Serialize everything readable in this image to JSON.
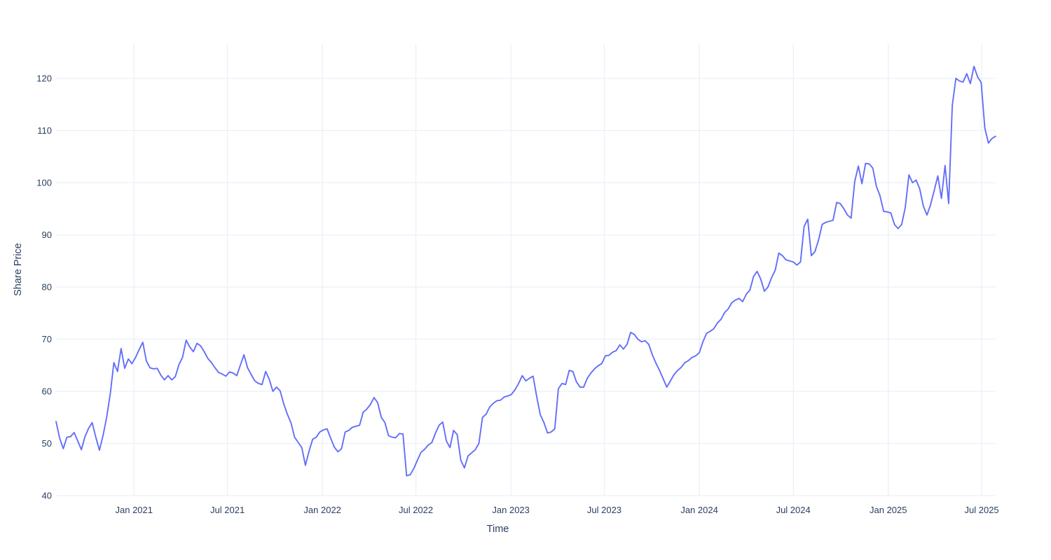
{
  "chart_data": {
    "type": "line",
    "title": "",
    "xlabel": "Time",
    "ylabel": "Share Price",
    "series": [
      {
        "name": "Share Price",
        "sampling": "weekly (approx., read from pixels)",
        "x_start_week": 0,
        "x_step_weeks": 1,
        "x_span_note": "x axis spans early Aug 2020 (week 0) to late Jul 2025 (week 260)",
        "values": [
          54.2,
          51.0,
          49.0,
          51.2,
          51.3,
          52.1,
          50.5,
          48.8,
          51.3,
          52.9,
          54.0,
          51.2,
          48.7,
          51.5,
          55.0,
          59.5,
          65.5,
          63.8,
          68.2,
          64.4,
          66.2,
          65.3,
          66.5,
          68.0,
          69.4,
          65.8,
          64.5,
          64.3,
          64.4,
          63.1,
          62.2,
          63.0,
          62.2,
          62.8,
          65.1,
          66.5,
          69.8,
          68.5,
          67.6,
          69.2,
          68.7,
          67.6,
          66.3,
          65.5,
          64.5,
          63.6,
          63.3,
          62.9,
          63.7,
          63.5,
          63.0,
          65.0,
          67.0,
          64.5,
          63.2,
          62.0,
          61.5,
          61.3,
          63.8,
          62.3,
          60.0,
          60.8,
          60.1,
          57.6,
          55.6,
          54.0,
          51.2,
          50.2,
          49.2,
          45.8,
          48.5,
          50.8,
          51.2,
          52.2,
          52.6,
          52.8,
          51.0,
          49.3,
          48.4,
          49.0,
          52.2,
          52.5,
          53.1,
          53.3,
          53.5,
          56.0,
          56.6,
          57.5,
          58.8,
          57.8,
          55.0,
          54.0,
          51.5,
          51.2,
          51.1,
          51.9,
          51.8,
          43.8,
          44.0,
          45.2,
          46.8,
          48.3,
          48.9,
          49.7,
          50.2,
          52.0,
          53.5,
          54.1,
          50.5,
          49.2,
          52.5,
          51.7,
          46.8,
          45.3,
          47.6,
          48.2,
          48.8,
          50.0,
          55.0,
          55.6,
          57.0,
          57.7,
          58.2,
          58.3,
          58.9,
          59.1,
          59.4,
          60.3,
          61.5,
          63.0,
          62.0,
          62.5,
          62.9,
          59.0,
          55.5,
          54.0,
          52.0,
          52.2,
          52.8,
          60.5,
          61.5,
          61.3,
          64.0,
          63.8,
          61.8,
          60.8,
          60.8,
          62.5,
          63.5,
          64.3,
          64.9,
          65.3,
          66.8,
          66.9,
          67.5,
          67.8,
          68.9,
          68.1,
          69.0,
          71.3,
          70.9,
          70.0,
          69.5,
          69.7,
          69.0,
          67.0,
          65.4,
          64.0,
          62.4,
          60.8,
          62.0,
          63.2,
          64.0,
          64.6,
          65.5,
          65.9,
          66.5,
          66.8,
          67.4,
          69.5,
          71.1,
          71.5,
          72.0,
          73.1,
          73.8,
          75.1,
          75.8,
          77.0,
          77.5,
          77.8,
          77.2,
          78.6,
          79.4,
          82.0,
          83.0,
          81.5,
          79.2,
          80.0,
          81.8,
          83.2,
          86.5,
          86.0,
          85.2,
          85.0,
          84.8,
          84.2,
          84.8,
          91.6,
          93.0,
          86.0,
          86.8,
          89.0,
          92.0,
          92.4,
          92.6,
          92.8,
          96.2,
          96.0,
          95.0,
          93.8,
          93.2,
          100.2,
          103.2,
          99.8,
          103.7,
          103.6,
          102.8,
          99.3,
          97.5,
          94.5,
          94.4,
          94.2,
          92.0,
          91.2,
          92.0,
          95.3,
          101.5,
          100.0,
          100.5,
          98.8,
          95.5,
          93.8,
          95.8,
          98.5,
          101.3,
          97.0,
          103.3,
          96.0,
          114.8,
          120.0,
          119.5,
          119.3,
          120.9,
          119.0,
          122.3,
          120.3,
          119.2,
          110.5,
          107.6,
          108.5,
          108.9
        ]
      }
    ],
    "x_ticks": [
      {
        "label": "Jan 2021",
        "week": 21.57
      },
      {
        "label": "Jul 2021",
        "week": 47.43
      },
      {
        "label": "Jan 2022",
        "week": 73.71
      },
      {
        "label": "Jul 2022",
        "week": 99.57
      },
      {
        "label": "Jan 2023",
        "week": 125.86
      },
      {
        "label": "Jul 2023",
        "week": 151.71
      },
      {
        "label": "Jan 2024",
        "week": 178.0
      },
      {
        "label": "Jul 2024",
        "week": 204.0
      },
      {
        "label": "Jan 2025",
        "week": 230.29
      },
      {
        "label": "Jul 2025",
        "week": 256.14
      }
    ],
    "y_ticks": [
      40,
      50,
      60,
      70,
      80,
      90,
      100,
      110,
      120
    ],
    "x_range_weeks": [
      0,
      260
    ],
    "y_range": [
      40,
      126.6
    ],
    "grid": true,
    "legend": false,
    "colors": {
      "line": "#636efa",
      "grid": "#ebf0f8",
      "tick_label": "#2a3f5f",
      "axis_title": "#2a3f5f",
      "background": "#ffffff"
    }
  }
}
